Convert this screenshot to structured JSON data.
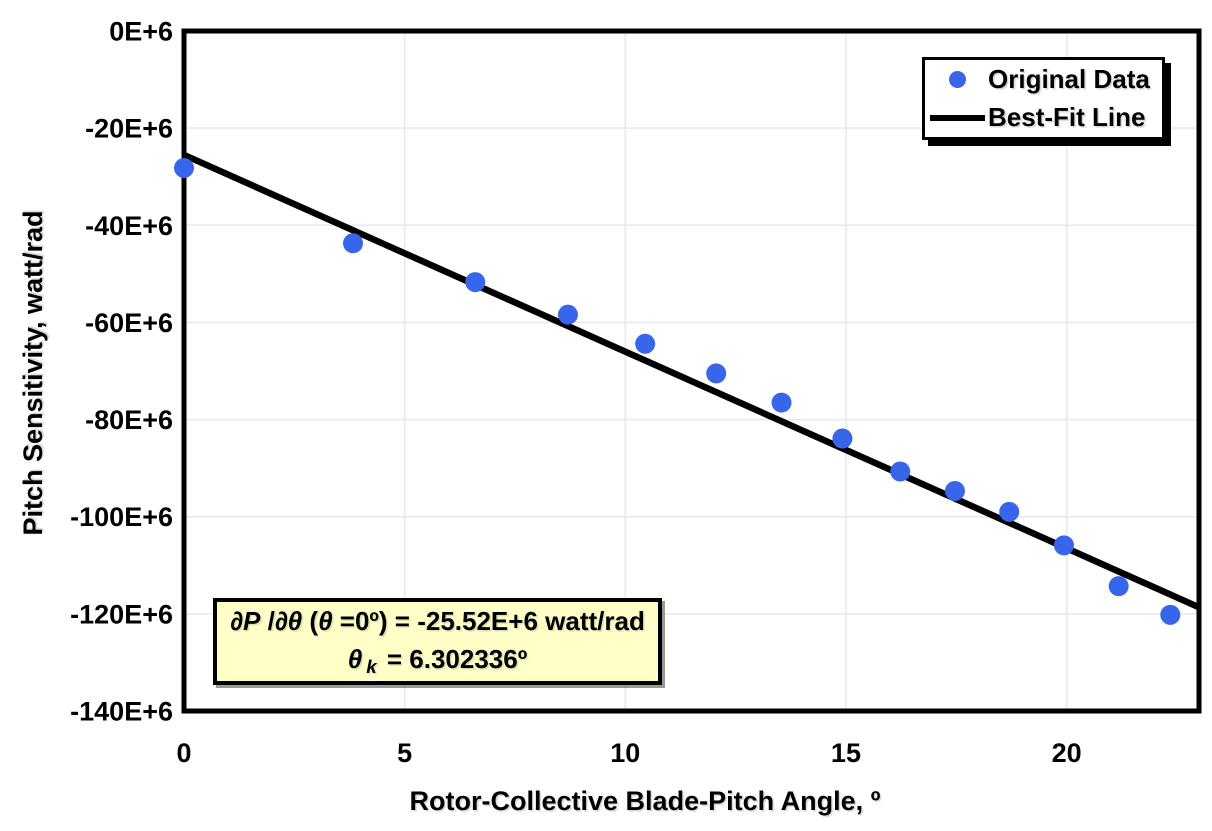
{
  "figure": {
    "background": "#FFFFFF"
  },
  "colors": {
    "marker_blue": "#3766EA",
    "line_black": "#000000",
    "grid_gray": "#E8E8E8",
    "annotation_yellow": "#FFFFC8"
  },
  "chart_data": {
    "type": "scatter",
    "title": "",
    "xlabel": "Rotor-Collective Blade-Pitch Angle, º",
    "ylabel": "Pitch Sensitivity, watt/rad",
    "xlim": [
      0,
      23
    ],
    "ylim_e6": [
      -140,
      0
    ],
    "x_tick_values": [
      0,
      5,
      10,
      15,
      20
    ],
    "x_tick_labels": [
      "0",
      "5",
      "10",
      "15",
      "20"
    ],
    "y_tick_values_e6": [
      0,
      -20,
      -40,
      -60,
      -80,
      -100,
      -120,
      -140
    ],
    "y_tick_labels": [
      "0E+6",
      "-20E+6",
      "-40E+6",
      "-60E+6",
      "-80E+6",
      "-100E+6",
      "-120E+6",
      "-140E+6"
    ],
    "grid": {
      "show": true,
      "color": "#E8E8E8"
    },
    "series": [
      {
        "name": "Original Data",
        "type": "scatter",
        "marker_color": "#3766EA",
        "x": [
          0.0,
          3.83,
          6.6,
          8.7,
          10.45,
          12.06,
          13.54,
          14.92,
          16.23,
          17.47,
          18.7,
          19.94,
          21.18,
          22.35
        ],
        "y_e6": [
          -28.2,
          -43.7,
          -51.7,
          -58.4,
          -64.4,
          -70.5,
          -76.5,
          -83.9,
          -90.7,
          -94.7,
          -99.0,
          -105.9,
          -114.3,
          -120.2
        ]
      },
      {
        "name": "Best-Fit Line",
        "type": "line",
        "color": "#000000",
        "x": [
          0,
          23
        ],
        "y_e6": [
          -25.52,
          -118.65
        ]
      }
    ],
    "legend": {
      "position": "top-right"
    },
    "annotation": {
      "background": "#FFFFC8",
      "text_line1": "∂P /∂θ (θ =0º) = -25.52E+6 watt/rad",
      "text_line2": "θ k = 6.302336º",
      "line1_segments": [
        {
          "text": "∂P",
          "italic": true
        },
        {
          "text": " /",
          "italic": false
        },
        {
          "text": "∂θ",
          "italic": true
        },
        {
          "text": " (",
          "italic": false
        },
        {
          "text": "θ",
          "italic": true
        },
        {
          "text": " =0º) = -25.52E+6 watt/rad",
          "italic": false
        }
      ],
      "line2_segments": [
        {
          "text": "θ",
          "italic": true
        },
        {
          "text": "k",
          "italic": true,
          "sub": true
        },
        {
          "text": " = 6.302336º",
          "italic": false
        }
      ]
    }
  }
}
